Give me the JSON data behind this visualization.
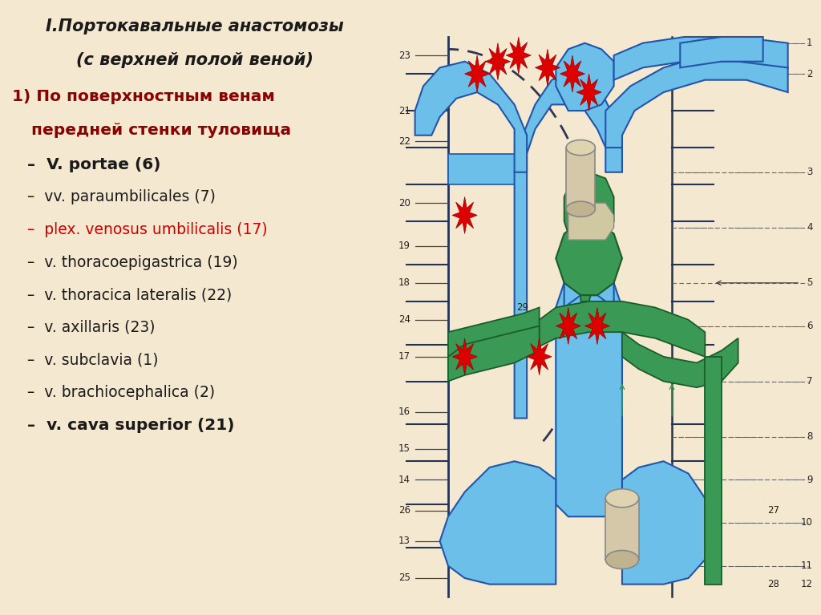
{
  "bg_color": "#f5e8d0",
  "title_line1": "I.Портокавальные анастомозы",
  "title_line2": "(с верхней полой веной)",
  "section_color": "#8b0000",
  "title_color": "#1a1a1a",
  "items": [
    {
      "text": "–  V. portae (6)",
      "color": "#1a1a1a",
      "bold": true
    },
    {
      "text": "–  vv. paraumbilicales (7)",
      "color": "#1a1a1a",
      "bold": false
    },
    {
      "text": "–  plex. venosus umbilicalis (17)",
      "color": "#cc0000",
      "bold": false
    },
    {
      "text": "–  v. thoracoepigastrica (19)",
      "color": "#1a1a1a",
      "bold": false
    },
    {
      "text": "–  v. thoracica lateralis (22)",
      "color": "#1a1a1a",
      "bold": false
    },
    {
      "text": "–  v. axillaris (23)",
      "color": "#1a1a1a",
      "bold": false
    },
    {
      "text": "–  v. subclavia (1)",
      "color": "#1a1a1a",
      "bold": false
    },
    {
      "text": "–  v. brachiocephalica (2)",
      "color": "#1a1a1a",
      "bold": false
    },
    {
      "text": "–  v. cava superior (21)",
      "color": "#1a1a1a",
      "bold": true
    }
  ],
  "blue_color": "#6bbfe8",
  "blue_edge": "#2255aa",
  "green_color": "#3a9a55",
  "green_edge": "#1a5c2a",
  "dark_line": "#223355",
  "label_color": "#222222"
}
